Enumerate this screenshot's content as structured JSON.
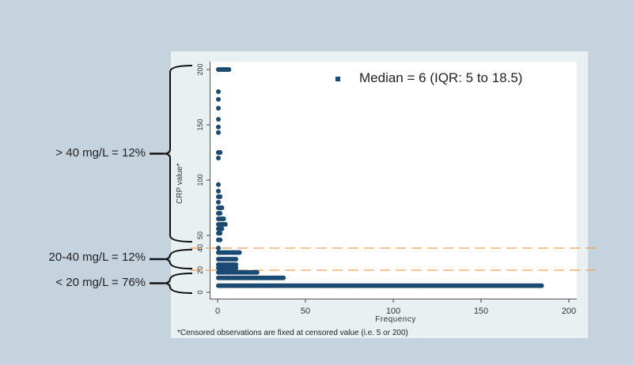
{
  "chart_data": {
    "type": "scatter",
    "subtype": "dot histogram (horizontal frequency)",
    "xlabel": "Frequency",
    "ylabel": "CRP value*",
    "x_ticks": [
      0,
      50,
      100,
      150,
      200
    ],
    "y_ticks": [
      0,
      20,
      40,
      50,
      100,
      150,
      200
    ],
    "xlim": [
      0,
      200
    ],
    "ylim": [
      0,
      200
    ],
    "y_axis_note": "piecewise scale: 0-40 and 50-200 segments",
    "reference_lines": [
      {
        "y": 20,
        "style": "dashed",
        "color": "#f0a050"
      },
      {
        "y": 40,
        "style": "dashed",
        "color": "#f0a050"
      }
    ],
    "legend": "Median = 6 (IQR: 5 to 18.5)",
    "footnote": "*Censored observations are fixed at censored value (i.e. 5 or 200)",
    "points": [
      {
        "crp": 200,
        "frequency": 7
      },
      {
        "crp": 180,
        "frequency": 1
      },
      {
        "crp": 173,
        "frequency": 1
      },
      {
        "crp": 165,
        "frequency": 1
      },
      {
        "crp": 155,
        "frequency": 1
      },
      {
        "crp": 148,
        "frequency": 1
      },
      {
        "crp": 143,
        "frequency": 1
      },
      {
        "crp": 125,
        "frequency": 2
      },
      {
        "crp": 120,
        "frequency": 1
      },
      {
        "crp": 96,
        "frequency": 1
      },
      {
        "crp": 90,
        "frequency": 1
      },
      {
        "crp": 85,
        "frequency": 2
      },
      {
        "crp": 80,
        "frequency": 1
      },
      {
        "crp": 75,
        "frequency": 3
      },
      {
        "crp": 70,
        "frequency": 2
      },
      {
        "crp": 65,
        "frequency": 4
      },
      {
        "crp": 60,
        "frequency": 5
      },
      {
        "crp": 56,
        "frequency": 3
      },
      {
        "crp": 52,
        "frequency": 2
      },
      {
        "crp": 46,
        "frequency": 2
      },
      {
        "crp": 40,
        "frequency": 1
      },
      {
        "crp": 36,
        "frequency": 13
      },
      {
        "crp": 30,
        "frequency": 11
      },
      {
        "crp": 25,
        "frequency": 11
      },
      {
        "crp": 22,
        "frequency": 11
      },
      {
        "crp": 18,
        "frequency": 23
      },
      {
        "crp": 13,
        "frequency": 38
      },
      {
        "crp": 6,
        "frequency": 185
      }
    ],
    "annotations": [
      {
        "label": "> 40 mg/L = 12%",
        "range": [
          40,
          200
        ]
      },
      {
        "label": "20-40 mg/L = 12%",
        "range": [
          20,
          40
        ]
      },
      {
        "label": "< 20 mg/L = 76%",
        "range": [
          0,
          20
        ]
      }
    ],
    "colors": {
      "points": "#1b4a73",
      "reference": "#f0a050",
      "background": "#c5d3df",
      "panel": "#e9f0f2"
    }
  },
  "labels": {
    "legend": "Median = 6 (IQR: 5 to 18.5)",
    "ylabel": "CRP value*",
    "xlabel": "Frequency",
    "footnote": "*Censored observations are fixed at censored value (i.e. 5 or 200)",
    "ann_high": "> 40 mg/L = 12%",
    "ann_mid": "20-40 mg/L = 12%",
    "ann_low": "< 20 mg/L = 76%"
  }
}
